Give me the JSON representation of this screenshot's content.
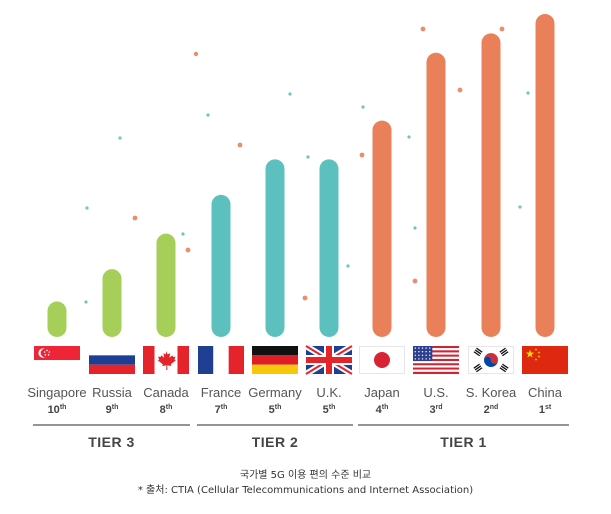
{
  "chart_data": {
    "type": "bar",
    "categories": [
      "Singapore",
      "Russia",
      "Canada",
      "France",
      "Germany",
      "U.K.",
      "Japan",
      "U.S.",
      "S. Korea",
      "China"
    ],
    "ranks": [
      {
        "num": "10",
        "suffix": "th"
      },
      {
        "num": "9",
        "suffix": "th"
      },
      {
        "num": "8",
        "suffix": "th"
      },
      {
        "num": "7",
        "suffix": "th"
      },
      {
        "num": "5",
        "suffix": "th"
      },
      {
        "num": "5",
        "suffix": "th"
      },
      {
        "num": "4",
        "suffix": "th"
      },
      {
        "num": "3",
        "suffix": "rd"
      },
      {
        "num": "2",
        "suffix": "nd"
      },
      {
        "num": "1",
        "suffix": "st"
      }
    ],
    "values": [
      11,
      21,
      32,
      44,
      55,
      55,
      67,
      88,
      94,
      100
    ],
    "ylim": [
      0,
      100
    ],
    "tiers": [
      {
        "name": "TIER 3",
        "first": 0,
        "last": 2,
        "color": "#a6cf5a"
      },
      {
        "name": "TIER 2",
        "first": 3,
        "last": 5,
        "color": "#5bc0be"
      },
      {
        "name": "TIER 1",
        "first": 6,
        "last": 9,
        "color": "#e9805a"
      }
    ],
    "flags": [
      "singapore-flag",
      "russia-flag",
      "canada-flag",
      "france-flag",
      "germany-flag",
      "uk-flag",
      "japan-flag",
      "us-flag",
      "south-korea-flag",
      "china-flag"
    ],
    "grid": false,
    "legend": "none"
  },
  "notes": {
    "title": "국가별 5G 이용 편의 수준 비교",
    "source": "* 출처: CTIA (Cellular Telecommunications and Internet Association)"
  }
}
